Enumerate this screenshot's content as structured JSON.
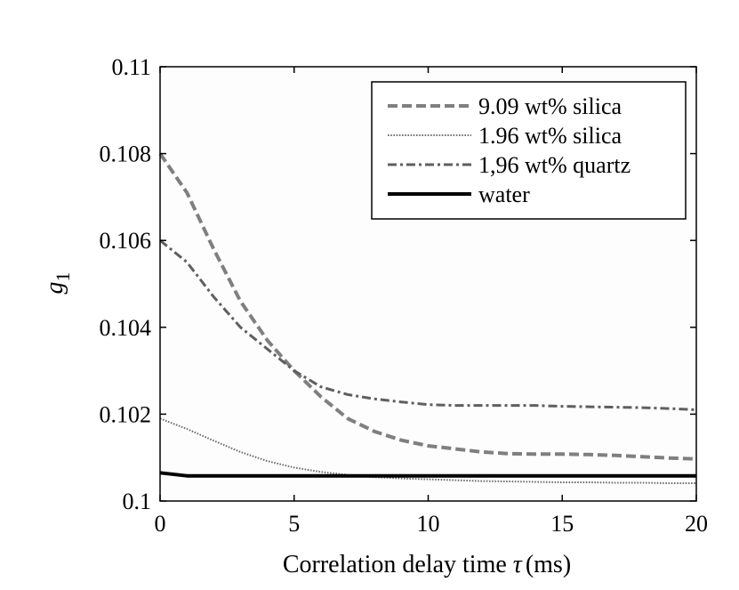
{
  "chart_data": {
    "type": "line",
    "title": "",
    "xlabel": "Correlation delay time τ (ms)",
    "xlabel_parts": {
      "text": "Correlation delay time",
      "symbol": "τ",
      "unit": "(ms)"
    },
    "ylabel": "g1",
    "ylabel_parts": {
      "base": "g",
      "sub": "1"
    },
    "xlim": [
      0,
      20
    ],
    "ylim": [
      0.1,
      0.11
    ],
    "x_ticks": [
      0,
      5,
      10,
      15,
      20
    ],
    "x_tick_labels": [
      "0",
      "5",
      "10",
      "15",
      "20"
    ],
    "y_ticks": [
      0.1,
      0.102,
      0.104,
      0.106,
      0.108,
      0.11
    ],
    "y_tick_labels": [
      "0.1",
      "0.102",
      "0.104",
      "0.106",
      "0.108",
      "0.11"
    ],
    "grid": false,
    "legend_position": "top-right",
    "series": [
      {
        "name": "9.09 wt% silica",
        "color": "#7f7f7f",
        "line_style": "dashed",
        "x": [
          0,
          1,
          2,
          3,
          4,
          5,
          6,
          7,
          8,
          9,
          10,
          11,
          12,
          13,
          14,
          15,
          16,
          17,
          18,
          19,
          20
        ],
        "y": [
          0.108,
          0.1071,
          0.1058,
          0.1046,
          0.1037,
          0.103,
          0.1024,
          0.1019,
          0.1016,
          0.1014,
          0.10127,
          0.1012,
          0.10113,
          0.10109,
          0.10108,
          0.10108,
          0.10107,
          0.10105,
          0.10102,
          0.10099,
          0.10097
        ]
      },
      {
        "name": "1.96 wt% silica",
        "color": "#6f6f6f",
        "line_style": "dotted",
        "x": [
          0,
          1,
          2,
          3,
          4,
          5,
          6,
          7,
          8,
          9,
          10,
          11,
          12,
          13,
          14,
          15,
          16,
          17,
          18,
          19,
          20
        ],
        "y": [
          0.1019,
          0.10166,
          0.10139,
          0.10113,
          0.10092,
          0.10077,
          0.10067,
          0.1006,
          0.10055,
          0.10052,
          0.1005,
          0.10048,
          0.10046,
          0.10045,
          0.10044,
          0.10043,
          0.10043,
          0.10042,
          0.10042,
          0.10041,
          0.10041
        ]
      },
      {
        "name": "1,96 wt% quartz",
        "color": "#5f5f5f",
        "line_style": "dashdot",
        "x": [
          0,
          1,
          2,
          3,
          4,
          5,
          6,
          7,
          8,
          9,
          10,
          11,
          12,
          13,
          14,
          15,
          16,
          17,
          18,
          19,
          20
        ],
        "y": [
          0.106,
          0.1055,
          0.1047,
          0.104,
          0.1035,
          0.103,
          0.10263,
          0.10245,
          0.10235,
          0.10228,
          0.10222,
          0.1022,
          0.1022,
          0.1022,
          0.1022,
          0.10218,
          0.10217,
          0.10216,
          0.10215,
          0.10213,
          0.1021
        ]
      },
      {
        "name": "water",
        "color": "#000000",
        "line_style": "solid",
        "x": [
          0,
          1,
          2,
          4,
          6,
          8,
          10,
          12,
          14,
          16,
          18,
          20
        ],
        "y": [
          0.10065,
          0.10058,
          0.10058,
          0.10058,
          0.10058,
          0.10058,
          0.10058,
          0.10058,
          0.10058,
          0.10058,
          0.10058,
          0.10058
        ]
      }
    ]
  }
}
